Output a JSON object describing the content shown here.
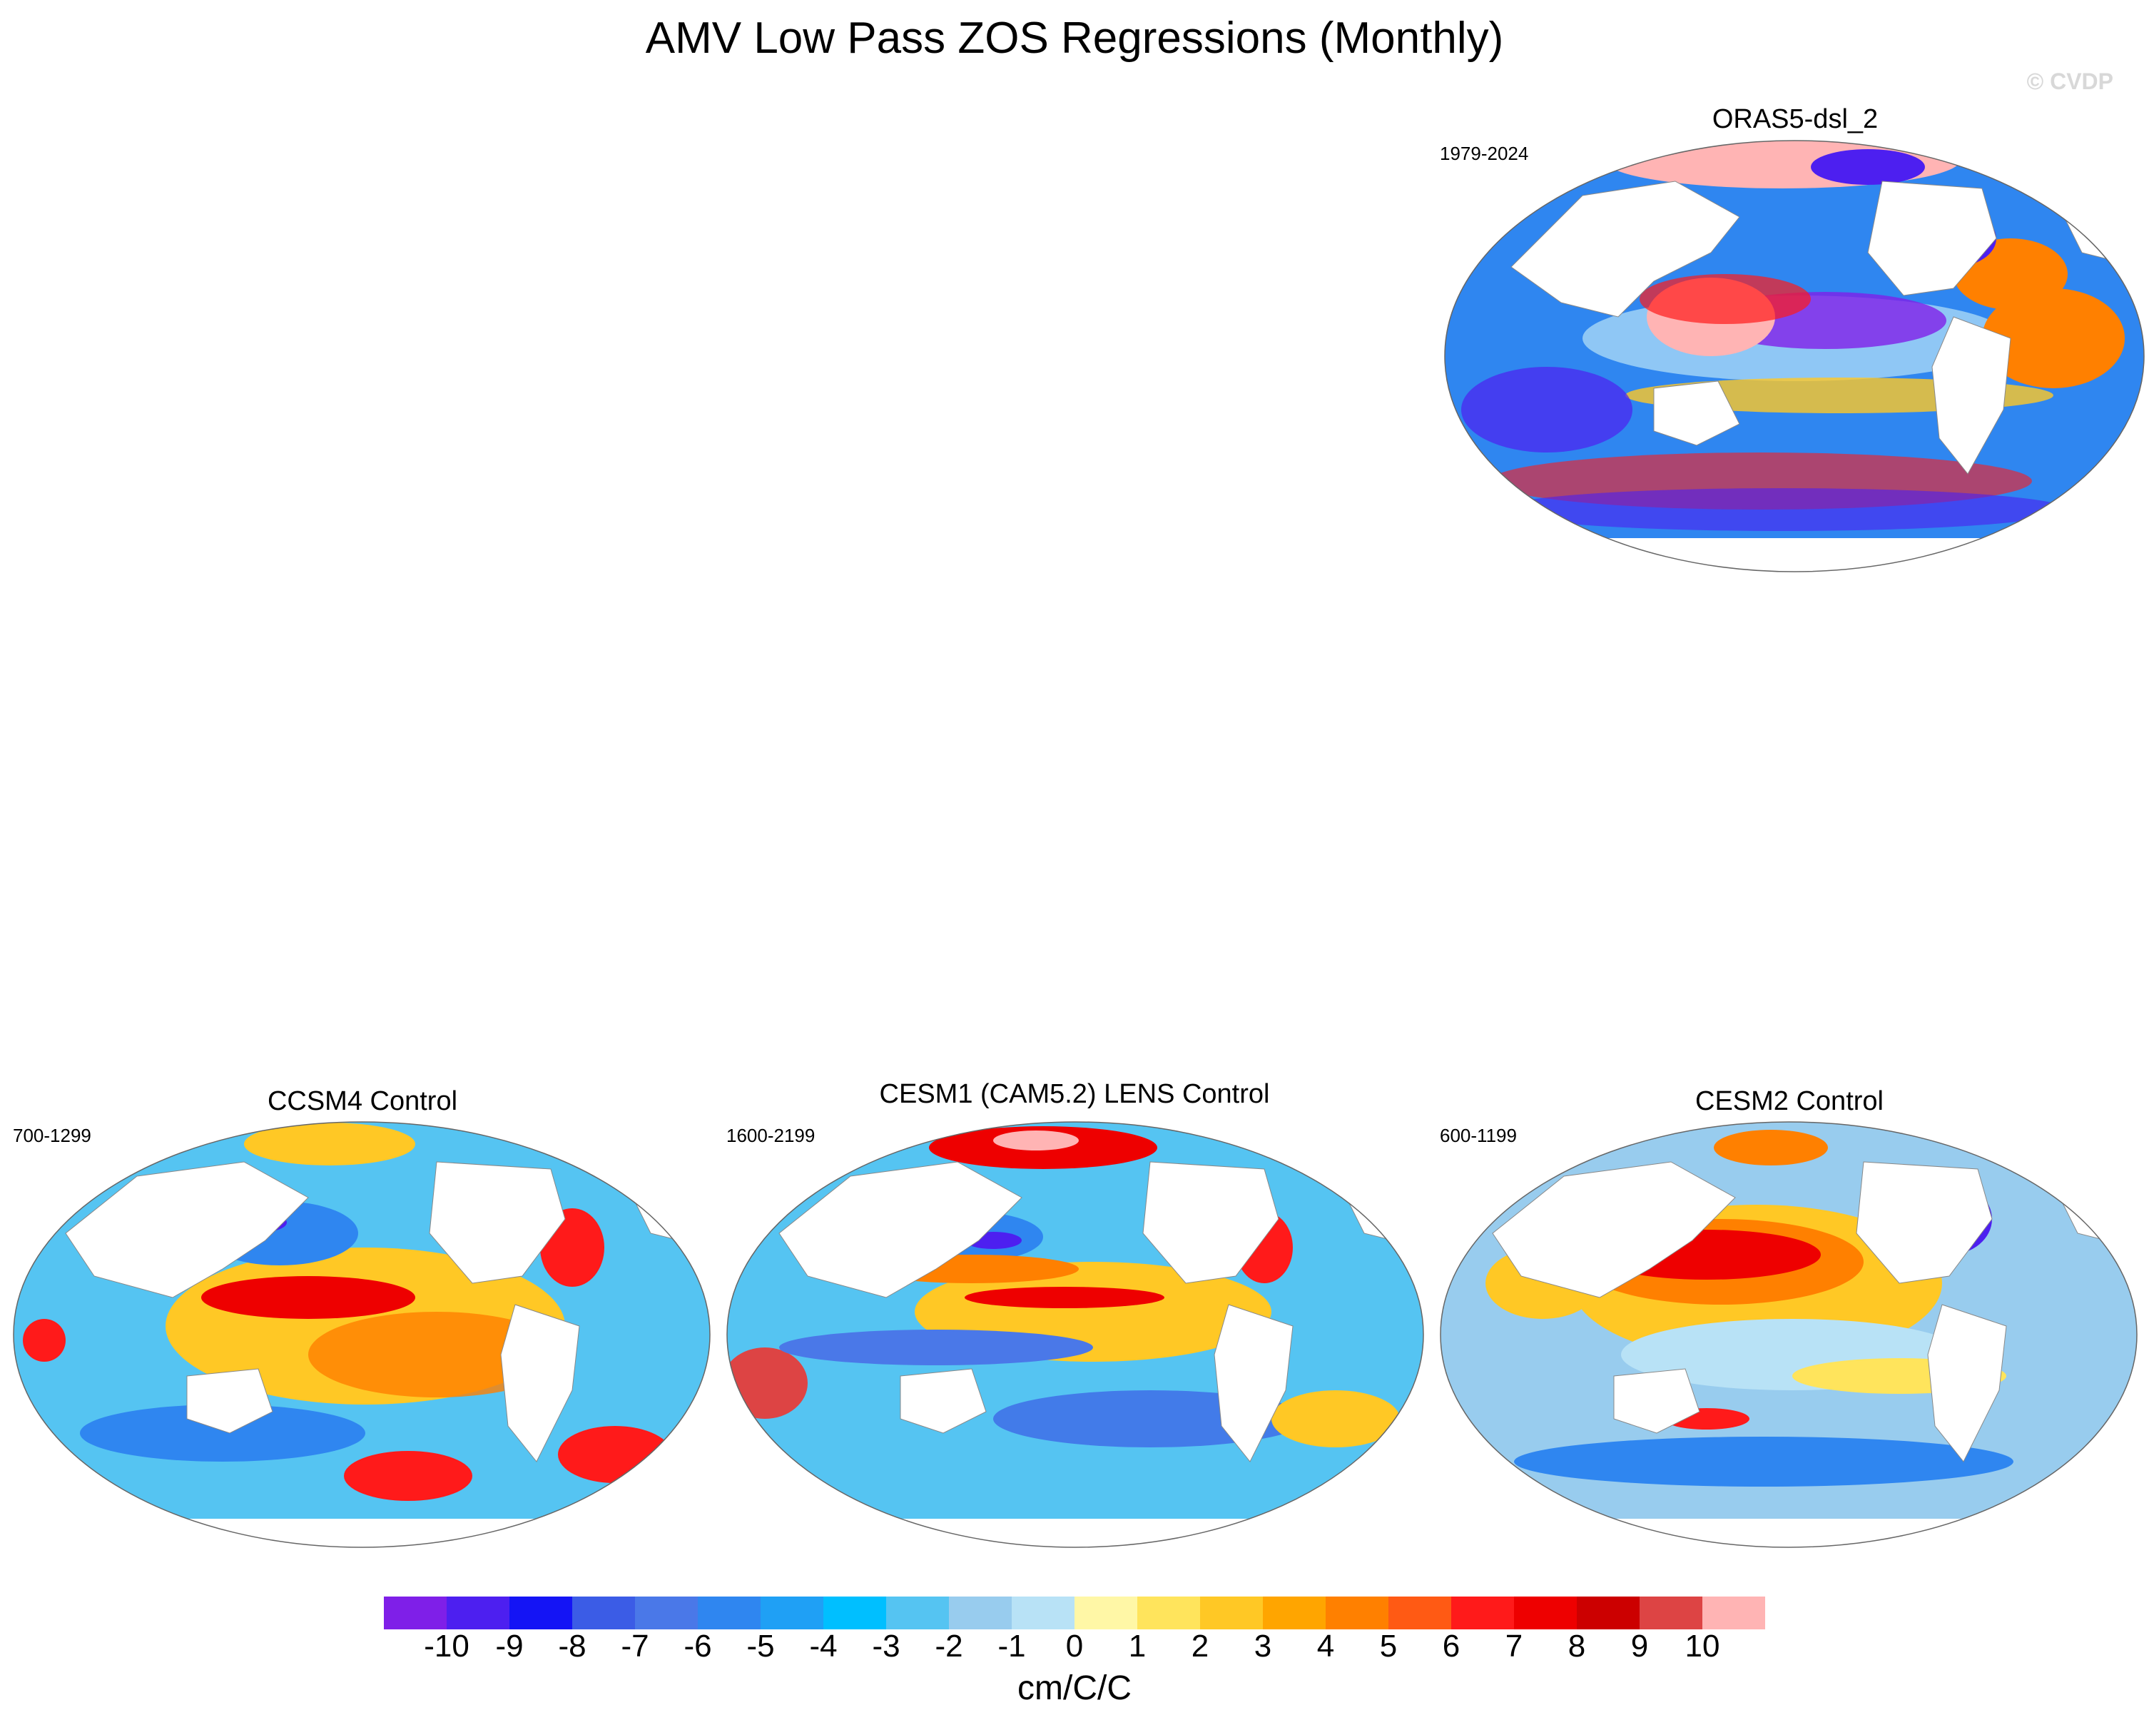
{
  "title": "AMV Low Pass ZOS Regressions (Monthly)",
  "watermark": "© CVDP",
  "panels": [
    {
      "title": "ORAS5-dsl_2",
      "years": "1979-2024"
    },
    {
      "title": "CCSM4 Control",
      "years": "700-1299"
    },
    {
      "title": "CESM1 (CAM5.2) LENS Control",
      "years": "1600-2199"
    },
    {
      "title": "CESM2 Control",
      "years": "600-1199"
    }
  ],
  "colorbar": {
    "units": "cm/C/C",
    "labels": [
      "-10",
      "-9",
      "-8",
      "-7",
      "-6",
      "-5",
      "-4",
      "-3",
      "-2",
      "-1",
      "0",
      "1",
      "2",
      "3",
      "4",
      "5",
      "6",
      "7",
      "8",
      "9",
      "10"
    ],
    "colors": [
      "#7f1fe8",
      "#4d1ff0",
      "#1414f5",
      "#3b5ce6",
      "#4a78e8",
      "#2f86f0",
      "#1fa0f5",
      "#00bfff",
      "#55c4f2",
      "#98ccee",
      "#b8e2f6",
      "#fff7a6",
      "#ffe45c",
      "#ffc825",
      "#ffa500",
      "#ff8000",
      "#ff5a14",
      "#ff1a1a",
      "#ee0000",
      "#cc0000",
      "#dd4444",
      "#ffb4b4"
    ]
  }
}
